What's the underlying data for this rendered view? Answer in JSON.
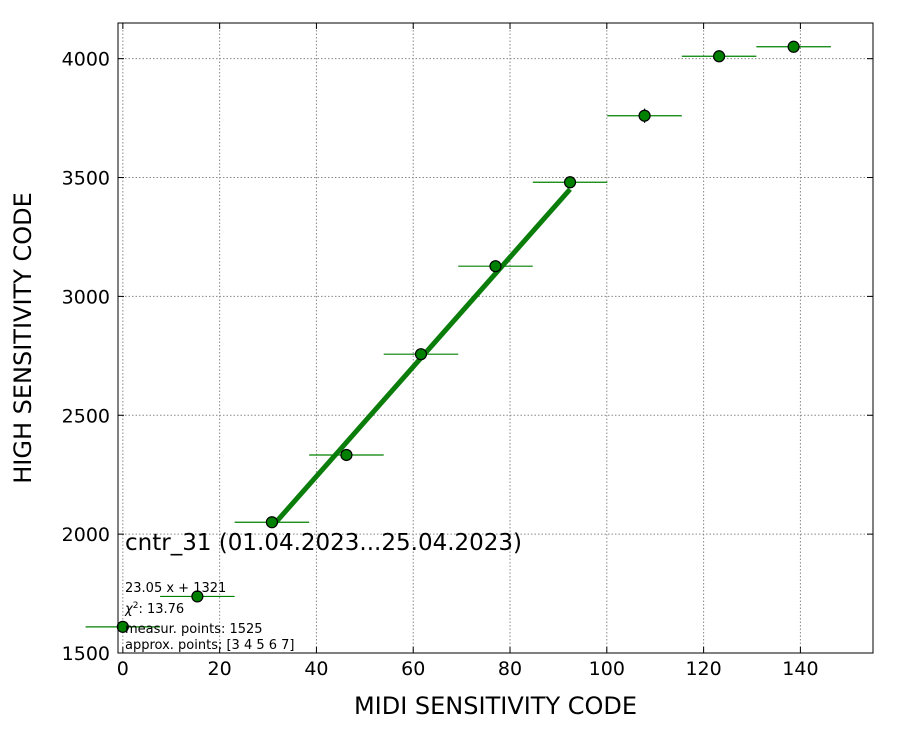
{
  "chart_data": {
    "type": "scatter",
    "title": "cntr_31 (01.04.2023...25.04.2023)",
    "xlabel": "MIDI SENSITIVITY CODE",
    "ylabel": "HIGH SENSITIVITY CODE",
    "xlim": [
      -1,
      155
    ],
    "ylim": [
      1500,
      4150
    ],
    "xticks": [
      0,
      20,
      40,
      60,
      80,
      100,
      120,
      140
    ],
    "yticks": [
      1500,
      2000,
      2500,
      3000,
      3500,
      4000
    ],
    "grid": true,
    "series": [
      {
        "kind": "points",
        "color": "#008000",
        "points": [
          {
            "x": 0,
            "y": 1610,
            "xerr": 7.7,
            "yerr": 12
          },
          {
            "x": 15.4,
            "y": 1738,
            "xerr": 7.7,
            "yerr": 15
          },
          {
            "x": 30.8,
            "y": 2050,
            "xerr": 7.7,
            "yerr": 15
          },
          {
            "x": 46.2,
            "y": 2333,
            "xerr": 7.7,
            "yerr": 15
          },
          {
            "x": 61.6,
            "y": 2757,
            "xerr": 7.7,
            "yerr": 15
          },
          {
            "x": 77.0,
            "y": 3127,
            "xerr": 7.7,
            "yerr": 20
          },
          {
            "x": 92.4,
            "y": 3480,
            "xerr": 7.7,
            "yerr": 25
          },
          {
            "x": 107.8,
            "y": 3760,
            "xerr": 7.7,
            "yerr": 30
          },
          {
            "x": 123.2,
            "y": 4010,
            "xerr": 7.7,
            "yerr": 15
          },
          {
            "x": 138.6,
            "y": 4050,
            "xerr": 7.7,
            "yerr": 15
          }
        ]
      },
      {
        "kind": "fit-line",
        "color": "#0a7d0a",
        "slope": 23.05,
        "intercept": 1321,
        "x_range": [
          30.8,
          92.4
        ]
      }
    ],
    "annotations": {
      "fit_equation": "23.05 x + 1321",
      "chi2_symbol": "χ",
      "chi2_value": ": 13.76",
      "measured": "measur. points: 1525",
      "approx": "approx. points: [3 4 5 6 7]"
    }
  }
}
